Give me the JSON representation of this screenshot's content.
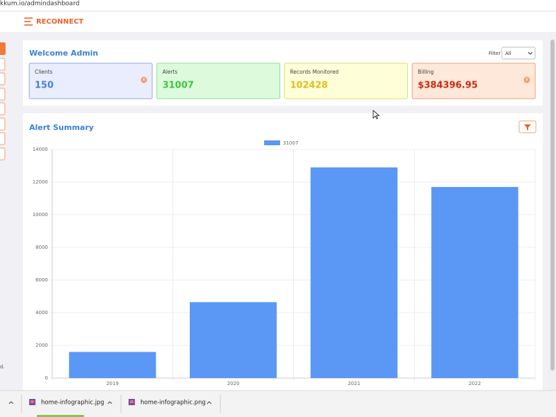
{
  "browser": {
    "url": "kkum.io/admindashboard",
    "downloads": [
      "home-infographic.jpg",
      "home-infographic.png"
    ]
  },
  "header": {
    "brand": "RECONNECT"
  },
  "sidebar": {
    "footer_fragment": "d."
  },
  "dashboard": {
    "title": "Welcome Admin",
    "filter_label": "Filter",
    "filter_value": "All",
    "cards": [
      {
        "label": "Clients",
        "value": 150
      },
      {
        "label": "Alerts",
        "value": 31007
      },
      {
        "label": "Records Monitored",
        "value": 102428
      },
      {
        "label": "Billing",
        "value": "$384396.95"
      }
    ]
  },
  "chart_data": {
    "type": "bar",
    "title": "Alert Summary",
    "categories": [
      "2019",
      "2020",
      "2021",
      "2022"
    ],
    "series": [
      {
        "name": "31007",
        "color": "#5b97f5",
        "values": [
          1600,
          4650,
          12900,
          11700
        ]
      }
    ],
    "ylim": [
      0,
      14000
    ],
    "yticks": [
      0,
      2000,
      4000,
      6000,
      8000,
      10000,
      12000,
      14000
    ],
    "grid": true
  }
}
